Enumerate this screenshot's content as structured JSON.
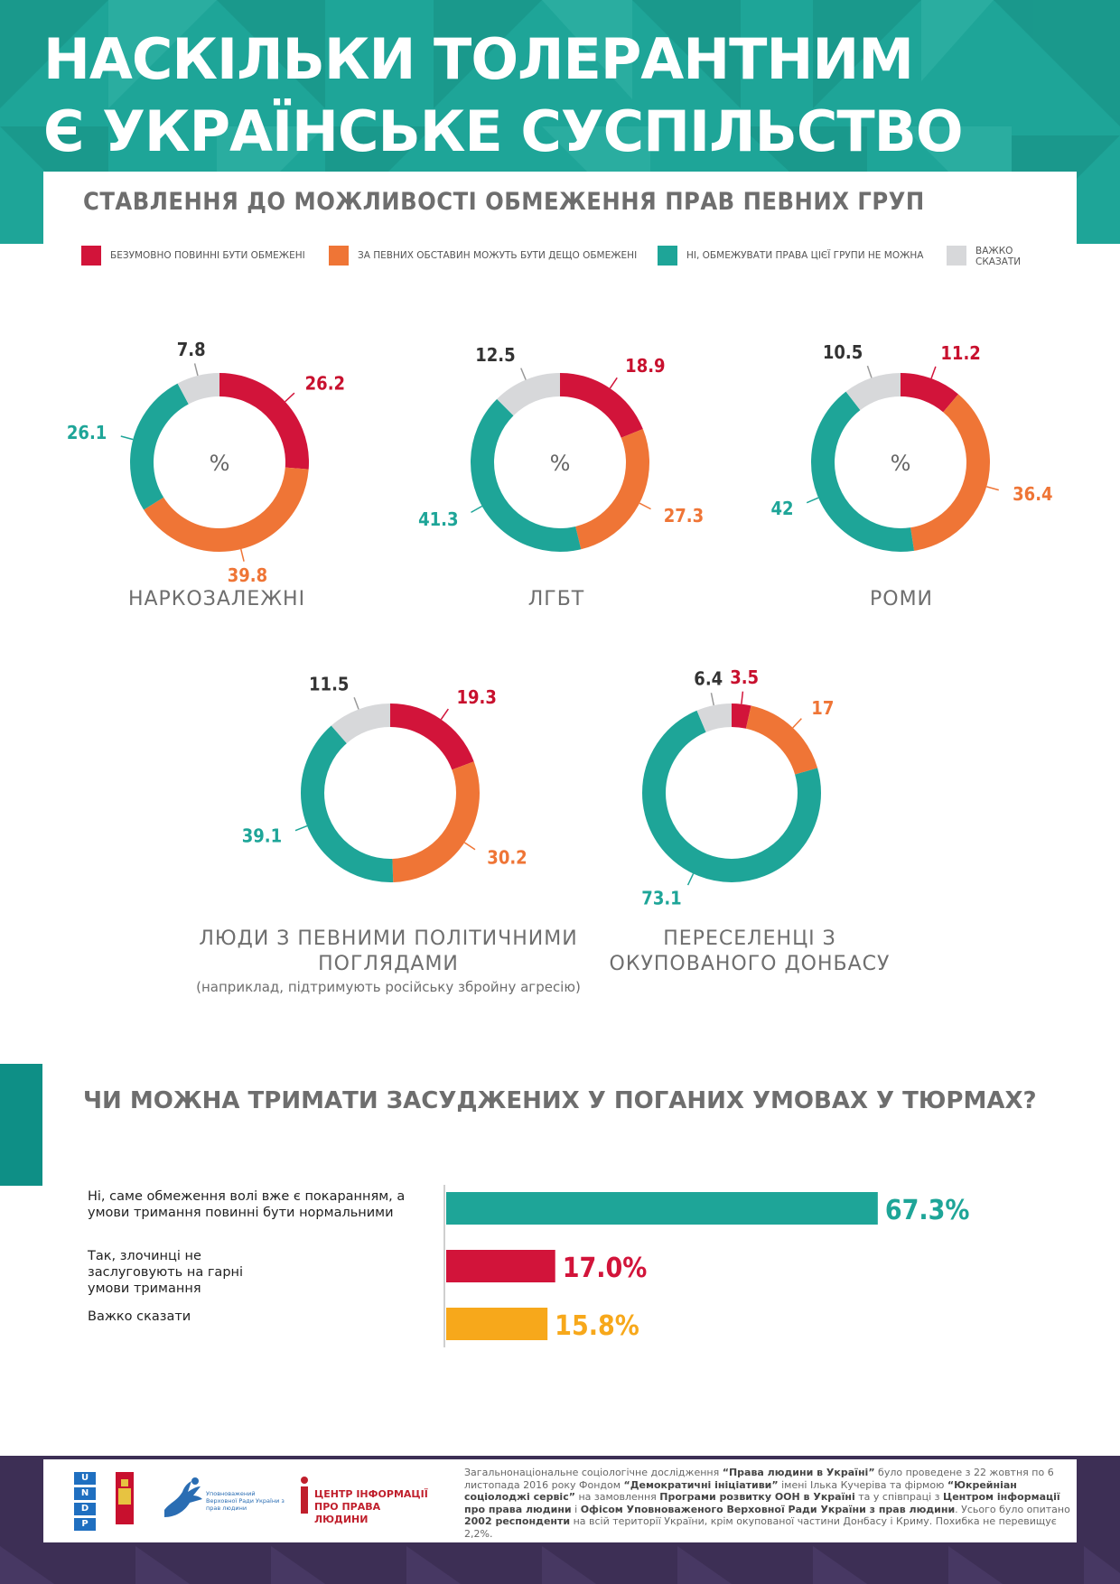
{
  "header": {
    "title_line1": "НАСКІЛЬКИ ТОЛЕРАНТНИМ",
    "title_line2": "Є УКРАЇНСЬКЕ СУСПІЛЬСТВО"
  },
  "section1": {
    "title": "СТАВЛЕННЯ ДО МОЖЛИВОСТІ ОБМЕЖЕННЯ ПРАВ ПЕВНИХ ГРУП",
    "legend": [
      {
        "label": "БЕЗУМОВНО ПОВИННІ БУТИ ОБМЕЖЕНІ",
        "color": "#d2143a"
      },
      {
        "label": "ЗА ПЕВНИХ ОБСТАВИН МОЖУТЬ БУТИ ДЕЩО ОБМЕЖЕНІ",
        "color": "#ef7536"
      },
      {
        "label": "НІ, ОБМЕЖУВАТИ ПРАВА ЦІЄЇ ГРУПИ НЕ МОЖНА",
        "color": "#1ea598"
      },
      {
        "label": "ВАЖКО СКАЗАТИ",
        "color": "#d7d8da"
      }
    ],
    "groups": [
      {
        "label": "НАРКОЗАЛЕЖНІ",
        "note": ""
      },
      {
        "label": "ЛГБТ",
        "note": ""
      },
      {
        "label": "РОМИ",
        "note": ""
      },
      {
        "label": "ЛЮДИ З ПЕВНИМИ ПОЛІТИЧНИМИ ПОГЛЯДАМИ",
        "note": "(наприклад, підтримують російську збройну агресію)"
      },
      {
        "label": "ПЕРЕСЕЛЕНЦІ З ОКУПОВАНОГО ДОНБАСУ",
        "note": ""
      }
    ]
  },
  "section2": {
    "title": "ЧИ МОЖНА ТРИМАТИ ЗАСУДЖЕНИХ У ПОГАНИХ УМОВАХ У ТЮРМАХ?"
  },
  "chart_data": [
    {
      "type": "pie",
      "center_label": "%",
      "categories": [
        "НАРКОЗАЛЕЖНІ",
        "ЛГБТ",
        "РОМИ",
        "ЛЮДИ З ПЕВНИМИ ПОЛІТИЧНИМИ ПОГЛЯДАМИ",
        "ПЕРЕСЕЛЕНЦІ З ОКУПОВАНОГО ДОНБАСУ"
      ],
      "series_order": [
        "БЕЗУМОВНО ПОВИННІ БУТИ ОБМЕЖЕНІ",
        "ЗА ПЕВНИХ ОБСТАВИН МОЖУТЬ БУТИ ДЕЩО ОБМЕЖЕНІ",
        "НІ, ОБМЕЖУВАТИ ПРАВА ЦІЄЇ ГРУПИ НЕ МОЖНА",
        "ВАЖКО СКАЗАТИ"
      ],
      "colors": [
        "#d2143a",
        "#ef7536",
        "#1ea598",
        "#d7d8da"
      ],
      "donuts": [
        {
          "group": "НАРКОЗАЛЕЖНІ",
          "values": [
            26.2,
            39.8,
            26.1,
            7.8
          ],
          "labels": [
            "26.2",
            "39.8",
            "26.1",
            "7.8"
          ],
          "show_percent": true
        },
        {
          "group": "ЛГБТ",
          "values": [
            18.9,
            27.3,
            41.3,
            12.5
          ],
          "labels": [
            "18.9",
            "27.3",
            "41.3",
            "12.5"
          ],
          "show_percent": true
        },
        {
          "group": "РОМИ",
          "values": [
            11.2,
            36.4,
            42,
            10.5
          ],
          "labels": [
            "11.2",
            "36.4",
            "42",
            "10.5"
          ],
          "show_percent": true
        },
        {
          "group": "ЛЮДИ З ПЕВНИМИ ПОЛІТИЧНИМИ ПОГЛЯДАМИ",
          "values": [
            19.3,
            30.2,
            39.1,
            11.5
          ],
          "labels": [
            "19.3",
            "30.2",
            "39.1",
            "11.5"
          ],
          "show_percent": false
        },
        {
          "group": "ПЕРЕСЕЛЕНЦІ З ОКУПОВАНОГО ДОНБАСУ",
          "values": [
            3.5,
            17,
            73.1,
            6.4
          ],
          "labels": [
            "3.5",
            "17",
            "73.1",
            "6.4"
          ],
          "show_percent": false
        }
      ]
    },
    {
      "type": "bar",
      "orientation": "horizontal",
      "categories": [
        "Ні, саме обмеження волі вже є покаранням, а умови тримання повинні бути нормальними",
        "Так, злочинці не заслуговують на гарні умови тримання",
        "Важко сказати"
      ],
      "values": [
        67.3,
        17.0,
        15.8
      ],
      "value_labels": [
        "67.3%",
        "17.0%",
        "15.8%"
      ],
      "colors": [
        "#1ea598",
        "#d2143a",
        "#f7a81b"
      ]
    }
  ],
  "footer": {
    "logos": {
      "undp_letters": [
        "U",
        "N",
        "D",
        "P"
      ],
      "ombudsman_text": "Уповноважений Верховної Ради України з прав людини",
      "center_text": "ЦЕНТР ІНФОРМАЦІЇ ПРО ПРАВА ЛЮДИНИ"
    },
    "note_parts": [
      {
        "t": "Загальнонаціональне соціологічне дослідження ",
        "b": false
      },
      {
        "t": "“Права людини в Україні”",
        "b": true
      },
      {
        "t": " було проведене з 22 жовтня по 6 листопада 2016 року Фондом ",
        "b": false
      },
      {
        "t": "“Демократичні ініціативи”",
        "b": true
      },
      {
        "t": " імені Ілька Кучеріва та фірмою ",
        "b": false
      },
      {
        "t": "“Юкрейніан соціолоджі сервіс”",
        "b": true
      },
      {
        "t": " на замовлення ",
        "b": false
      },
      {
        "t": "Програми розвитку ООН в Україні",
        "b": true
      },
      {
        "t": " та у співпраці з ",
        "b": false
      },
      {
        "t": "Центром інформації про права людини",
        "b": true
      },
      {
        "t": " і ",
        "b": false
      },
      {
        "t": "Офісом Уповноваженого Верховної Ради України з прав людини",
        "b": true
      },
      {
        "t": ". Усього було опитано ",
        "b": false
      },
      {
        "t": "2002 респонденти",
        "b": true
      },
      {
        "t": " на всій території України, крім окупованої частини Донбасу і Криму. Похибка  не перевищує 2,2%.",
        "b": false
      }
    ]
  }
}
